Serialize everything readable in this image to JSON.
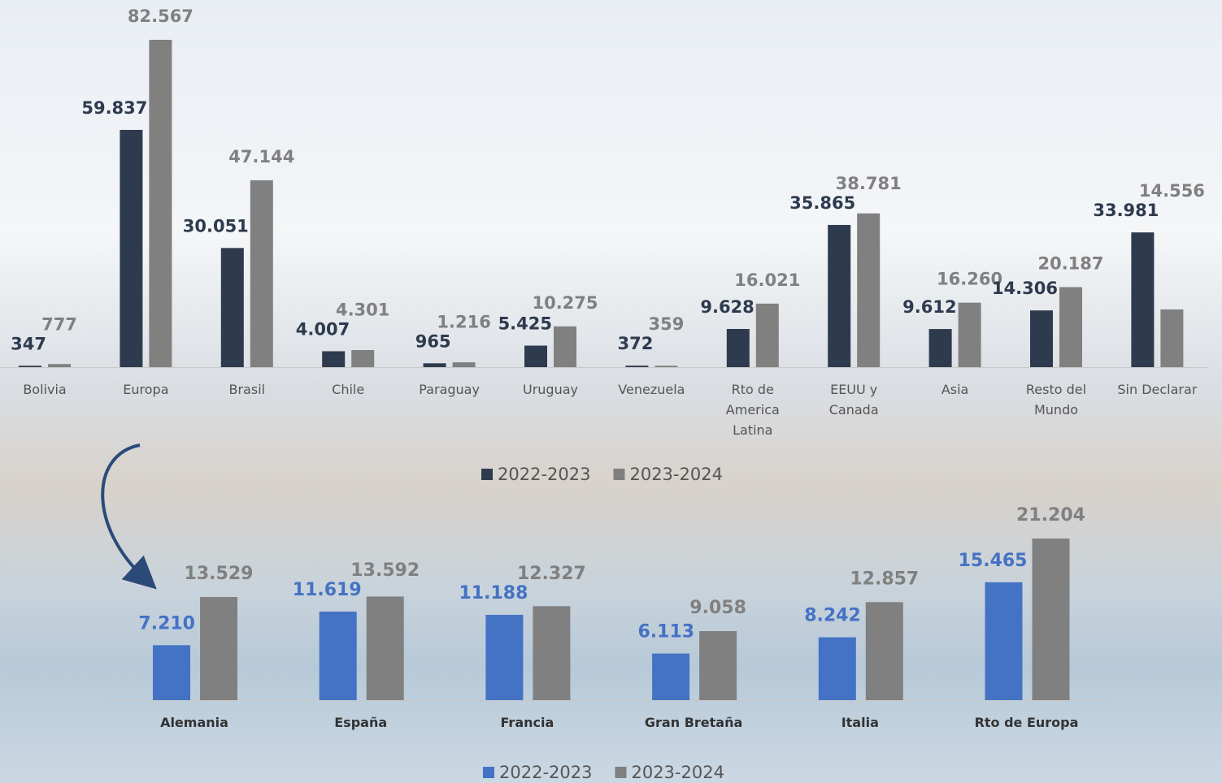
{
  "chart_data": [
    {
      "type": "bar",
      "categories": [
        "Bolivia",
        "Europa",
        "Brasil",
        "Chile",
        "Paraguay",
        "Uruguay",
        "Venezuela",
        "Rto de America Latina",
        "EEUU y Canada",
        "Asia",
        "Resto del Mundo",
        "Sin Declarar"
      ],
      "series": [
        {
          "name": "2022-2023",
          "color": "#2e3a4e",
          "values": [
            347,
            59837,
            30051,
            4007,
            965,
            5425,
            372,
            9628,
            35865,
            9612,
            14306,
            33981
          ],
          "value_labels": [
            "347",
            "59.837",
            "30.051",
            "4.007",
            "965",
            "5.425",
            "372",
            "9.628",
            "35.865",
            "9.612",
            "14.306",
            "33.981"
          ]
        },
        {
          "name": "2023-2024",
          "color": "#808080",
          "values": [
            777,
            82567,
            47144,
            4301,
            1216,
            10275,
            359,
            16021,
            38781,
            16260,
            20187,
            14556
          ],
          "value_labels": [
            "777",
            "82.567",
            "47.144",
            "4.301",
            "1.216",
            "10.275",
            "359",
            "16.021",
            "38.781",
            "16.260",
            "20.187",
            "14.556"
          ]
        }
      ]
    },
    {
      "type": "bar",
      "categories": [
        "Alemania",
        "España",
        "Francia",
        "Gran Bretaña",
        "Italia",
        "Rto de Europa"
      ],
      "series": [
        {
          "name": "2022-2023",
          "color": "#4472c4",
          "values": [
            7210,
            11619,
            11188,
            6113,
            8242,
            15465
          ],
          "value_labels": [
            "7.210",
            "11.619",
            "11.188",
            "6.113",
            "8.242",
            "15.465"
          ]
        },
        {
          "name": "2023-2024",
          "color": "#808080",
          "values": [
            13529,
            13592,
            12327,
            9058,
            12857,
            21204
          ],
          "value_labels": [
            "13.529",
            "13.592",
            "12.327",
            "9.058",
            "12.857",
            "21.204"
          ]
        }
      ]
    }
  ]
}
